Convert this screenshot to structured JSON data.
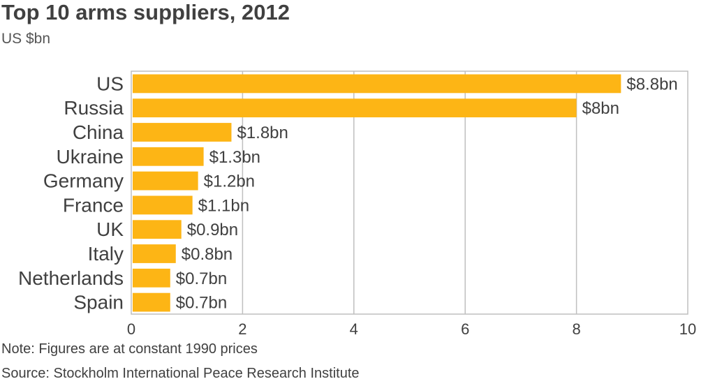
{
  "header": {
    "title": "Top 10 arms suppliers, 2012",
    "subtitle": "US $bn"
  },
  "footer": {
    "note": "Note: Figures are at constant 1990 prices",
    "source": "Source: Stockholm International Peace Research Institute"
  },
  "colors": {
    "bar": "#FDB515",
    "grid": "#BFBFBF",
    "text": "#404040"
  },
  "chart_data": {
    "type": "bar",
    "orientation": "horizontal",
    "title": "Top 10 arms suppliers, 2012",
    "subtitle": "US $bn",
    "categories": [
      "US",
      "Russia",
      "China",
      "Ukraine",
      "Germany",
      "France",
      "UK",
      "Italy",
      "Netherlands",
      "Spain"
    ],
    "values": [
      8.8,
      8.0,
      1.8,
      1.3,
      1.2,
      1.1,
      0.9,
      0.8,
      0.7,
      0.7
    ],
    "data_labels": [
      "$8.8bn",
      "$8bn",
      "$1.8bn",
      "$1.3bn",
      "$1.2bn",
      "$1.1bn",
      "$0.9bn",
      "$0.8bn",
      "$0.7bn",
      "$0.7bn"
    ],
    "xlim": [
      0,
      10
    ],
    "x_ticks": [
      "0",
      "2",
      "4",
      "6",
      "8",
      "10"
    ],
    "grid": true,
    "legend": "none"
  }
}
